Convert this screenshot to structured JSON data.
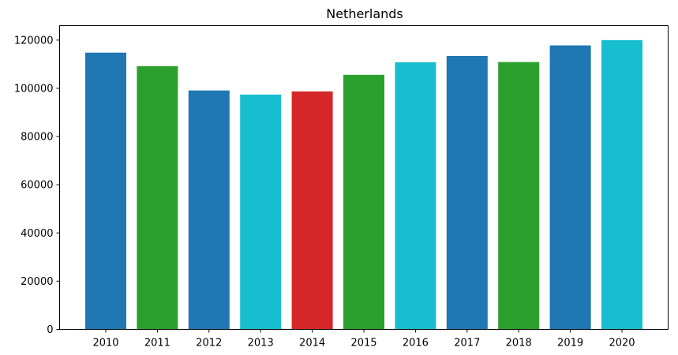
{
  "chart_data": {
    "type": "bar",
    "title": "Netherlands",
    "xlabel": "",
    "ylabel": "",
    "categories": [
      "2010",
      "2011",
      "2012",
      "2013",
      "2014",
      "2015",
      "2016",
      "2017",
      "2018",
      "2019",
      "2020"
    ],
    "values": [
      114800,
      109200,
      99100,
      97400,
      98700,
      105600,
      110800,
      113400,
      110900,
      117800,
      120000
    ],
    "bar_colors": [
      "#1f77b4",
      "#2ca02c",
      "#1f77b4",
      "#17becf",
      "#d62728",
      "#2ca02c",
      "#17becf",
      "#1f77b4",
      "#2ca02c",
      "#1f77b4",
      "#17becf"
    ],
    "ylim": [
      0,
      126000
    ],
    "yticks": [
      0,
      20000,
      40000,
      60000,
      80000,
      100000,
      120000
    ],
    "grid": false,
    "legend": "none"
  }
}
